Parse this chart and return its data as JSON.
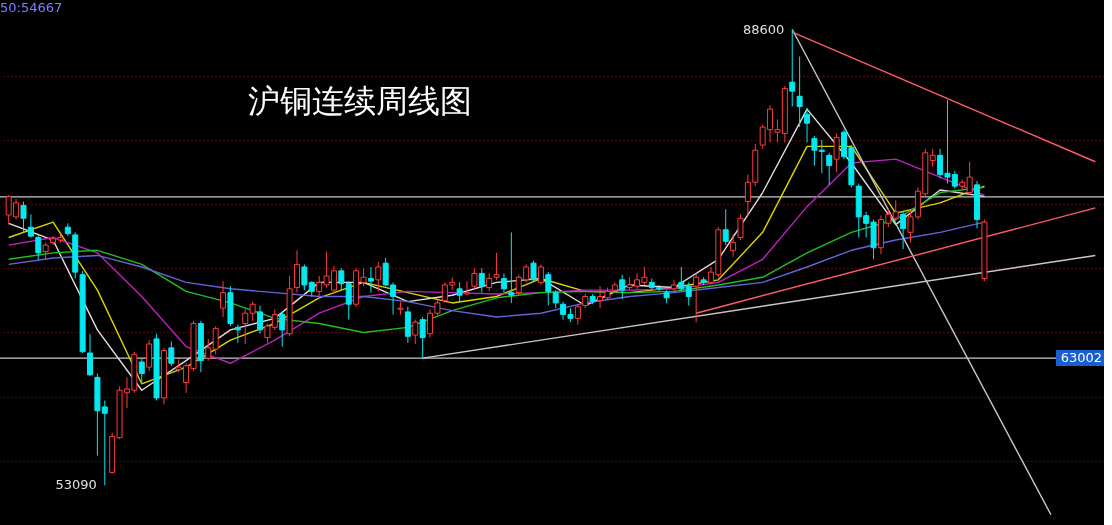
{
  "chart_data": {
    "type": "candlestick",
    "title": "沪铜连续周线图",
    "categories": [
      null,
      null,
      null,
      null,
      null,
      null,
      null,
      null,
      null,
      null,
      null,
      null,
      null,
      null,
      null,
      null,
      null,
      null,
      null,
      null,
      null,
      null,
      null,
      null,
      null,
      null,
      null,
      null,
      null,
      null,
      null,
      null,
      null,
      null,
      null,
      null,
      null,
      null,
      null,
      null,
      null,
      null,
      null,
      null,
      null,
      null,
      null,
      null,
      null,
      null,
      null,
      null,
      null,
      null,
      null,
      null,
      null,
      null,
      null,
      null,
      null,
      null,
      null,
      null,
      null,
      null,
      null,
      null,
      null,
      null,
      null,
      null,
      null,
      null,
      null,
      null,
      null,
      null,
      null,
      null,
      null,
      null,
      null,
      null,
      null,
      null,
      null,
      null,
      null,
      null,
      null,
      null,
      null,
      null,
      null,
      null,
      null,
      null,
      null,
      null,
      null,
      null,
      null,
      null,
      null,
      null,
      null,
      null,
      null,
      null,
      null,
      null,
      null,
      null,
      null,
      null,
      null,
      null,
      null,
      null,
      null,
      null,
      null,
      null,
      null,
      null,
      null,
      null,
      null,
      null,
      null,
      null,
      null,
      null,
      null,
      null,
      null,
      null,
      null,
      null,
      null,
      null,
      null,
      null,
      null,
      null,
      null,
      null
    ],
    "ohlc": [
      [
        74150,
        75700,
        73400,
        75570
      ],
      [
        74000,
        75400,
        73800,
        75100
      ],
      [
        74900,
        75200,
        72800,
        73900
      ],
      [
        73200,
        74200,
        72400,
        72500
      ],
      [
        72400,
        72600,
        70650,
        71200
      ],
      [
        71300,
        72000,
        70700,
        71800
      ],
      [
        72000,
        72500,
        71800,
        72300
      ],
      [
        72200,
        72700,
        72000,
        72400
      ],
      [
        73200,
        73500,
        72500,
        72700
      ],
      [
        72600,
        72800,
        69200,
        69700
      ],
      [
        69500,
        69800,
        63400,
        63500
      ],
      [
        63400,
        64900,
        61600,
        61700
      ],
      [
        61500,
        61800,
        55400,
        58900
      ],
      [
        59200,
        59700,
        53090,
        58700
      ],
      [
        54100,
        57200,
        54000,
        56900
      ],
      [
        56800,
        60800,
        56700,
        60500
      ],
      [
        60300,
        61500,
        59100,
        60600
      ],
      [
        60500,
        63500,
        60300,
        63300
      ],
      [
        62700,
        63000,
        61000,
        61800
      ],
      [
        62300,
        64400,
        62000,
        64100
      ],
      [
        64500,
        64900,
        59700,
        59900
      ],
      [
        59900,
        63800,
        59400,
        63600
      ],
      [
        63800,
        64300,
        62400,
        62600
      ],
      [
        62100,
        62900,
        61900,
        62300
      ],
      [
        61100,
        62600,
        60300,
        62400
      ],
      [
        62200,
        65900,
        62000,
        65700
      ],
      [
        65700,
        65900,
        61900,
        62800
      ],
      [
        63000,
        64500,
        62800,
        63800
      ],
      [
        63700,
        65500,
        63300,
        65300
      ],
      [
        66900,
        69000,
        66200,
        68100
      ],
      [
        68100,
        68600,
        65500,
        65700
      ],
      [
        65400,
        65600,
        64200,
        65200
      ],
      [
        65700,
        66800,
        64100,
        66500
      ],
      [
        66500,
        67400,
        65900,
        67200
      ],
      [
        66600,
        67100,
        64900,
        65200
      ],
      [
        64600,
        65700,
        64200,
        65500
      ],
      [
        65400,
        66800,
        65200,
        66400
      ],
      [
        66400,
        66600,
        63900,
        65200
      ],
      [
        64900,
        69400,
        64700,
        68400
      ],
      [
        68500,
        71400,
        68100,
        70300
      ],
      [
        70100,
        70300,
        68300,
        68700
      ],
      [
        68900,
        69000,
        67800,
        68200
      ],
      [
        68200,
        69400,
        67600,
        68900
      ],
      [
        68700,
        71300,
        68500,
        69400
      ],
      [
        68300,
        70200,
        68100,
        69800
      ],
      [
        69800,
        70000,
        68300,
        68800
      ],
      [
        68800,
        69000,
        66000,
        67200
      ],
      [
        67200,
        70000,
        67000,
        69800
      ],
      [
        68900,
        70000,
        68600,
        69300
      ],
      [
        69200,
        70100,
        68100,
        69000
      ],
      [
        69100,
        70500,
        68200,
        70100
      ],
      [
        70400,
        70800,
        68600,
        68700
      ],
      [
        68700,
        68900,
        66400,
        67800
      ],
      [
        66800,
        67400,
        66400,
        66900
      ],
      [
        66600,
        67000,
        64200,
        64700
      ],
      [
        64800,
        66000,
        64100,
        65800
      ],
      [
        66000,
        66200,
        63000,
        64600
      ],
      [
        64900,
        66800,
        64600,
        66500
      ],
      [
        66500,
        67500,
        66300,
        67300
      ],
      [
        67500,
        68900,
        67300,
        68700
      ],
      [
        68700,
        69300,
        68300,
        68900
      ],
      [
        68400,
        68900,
        67300,
        67900
      ],
      [
        68000,
        69000,
        67900,
        68100
      ],
      [
        68600,
        70000,
        68400,
        69600
      ],
      [
        69600,
        70000,
        68100,
        68600
      ],
      [
        68500,
        69600,
        68200,
        69200
      ],
      [
        69300,
        71200,
        69100,
        69500
      ],
      [
        69200,
        69600,
        68100,
        68400
      ],
      [
        68100,
        72800,
        67300,
        67900
      ],
      [
        68100,
        69500,
        67900,
        69300
      ],
      [
        69100,
        70300,
        68900,
        70100
      ],
      [
        70400,
        70600,
        69000,
        69100
      ],
      [
        68900,
        70300,
        68700,
        70100
      ],
      [
        69500,
        69700,
        67100,
        68200
      ],
      [
        68100,
        68300,
        66900,
        67300
      ],
      [
        67200,
        67400,
        66000,
        66400
      ],
      [
        66400,
        66900,
        65800,
        66100
      ],
      [
        66100,
        67200,
        65600,
        67000
      ],
      [
        67100,
        68000,
        66900,
        67800
      ],
      [
        67800,
        68000,
        67200,
        67400
      ],
      [
        67500,
        68600,
        66900,
        67800
      ],
      [
        67700,
        68500,
        67500,
        68200
      ],
      [
        68300,
        68900,
        68100,
        68700
      ],
      [
        69100,
        69500,
        67600,
        68300
      ],
      [
        68500,
        69300,
        68300,
        68700
      ],
      [
        68600,
        69600,
        68400,
        69100
      ],
      [
        68900,
        70100,
        68700,
        69300
      ],
      [
        68900,
        69200,
        68300,
        68500
      ],
      [
        68500,
        68700,
        68200,
        68400
      ],
      [
        68100,
        68300,
        67300,
        67700
      ],
      [
        68400,
        69100,
        68200,
        68700
      ],
      [
        68900,
        70100,
        68200,
        68400
      ],
      [
        68600,
        68900,
        67100,
        67800
      ],
      [
        68600,
        69600,
        65800,
        69300
      ],
      [
        69100,
        69300,
        68700,
        68900
      ],
      [
        68900,
        70100,
        68800,
        69700
      ],
      [
        69500,
        73200,
        69300,
        73000
      ],
      [
        73000,
        74600,
        71800,
        72100
      ],
      [
        71400,
        72700,
        70900,
        72000
      ],
      [
        72400,
        74200,
        72200,
        73900
      ],
      [
        75200,
        77300,
        74100,
        76700
      ],
      [
        76700,
        79700,
        76400,
        79200
      ],
      [
        79600,
        81200,
        79300,
        81000
      ],
      [
        80800,
        82700,
        79800,
        82400
      ],
      [
        80600,
        81600,
        79800,
        80800
      ],
      [
        80500,
        84200,
        79800,
        84000
      ],
      [
        84500,
        88600,
        82600,
        83800
      ],
      [
        83400,
        86500,
        81000,
        82600
      ],
      [
        82000,
        82500,
        79800,
        81300
      ],
      [
        80100,
        80300,
        78000,
        79200
      ],
      [
        79200,
        80000,
        77400,
        79100
      ],
      [
        78800,
        79000,
        76500,
        78000
      ],
      [
        78500,
        80500,
        77500,
        80200
      ],
      [
        80600,
        80800,
        78500,
        78700
      ],
      [
        79400,
        79600,
        76300,
        76500
      ],
      [
        76400,
        76600,
        72400,
        74000
      ],
      [
        74100,
        74400,
        72400,
        73500
      ],
      [
        73600,
        73800,
        70700,
        71600
      ],
      [
        71600,
        74100,
        71100,
        73800
      ],
      [
        73500,
        74600,
        73200,
        74200
      ],
      [
        73900,
        75300,
        73700,
        74400
      ],
      [
        74200,
        74400,
        71500,
        73100
      ],
      [
        72800,
        74500,
        72000,
        74000
      ],
      [
        74000,
        76300,
        73800,
        76000
      ],
      [
        75800,
        79300,
        75600,
        79000
      ],
      [
        78400,
        79300,
        77900,
        78800
      ],
      [
        78800,
        79300,
        77000,
        77300
      ],
      [
        77400,
        83100,
        76600,
        77100
      ],
      [
        77300,
        77600,
        76200,
        76400
      ],
      [
        76400,
        76900,
        76100,
        76700
      ],
      [
        75900,
        78300,
        75700,
        77100
      ],
      [
        76500,
        76800,
        73100,
        73800
      ],
      [
        69200,
        73800,
        69000,
        73600
      ],
      null,
      null,
      null,
      null,
      null,
      null,
      null,
      null,
      null,
      null,
      null,
      null,
      null,
      null,
      null
    ],
    "colors": [
      "#ff3b3b",
      "#ff3b3b",
      "#00e8f0",
      "#00e8f0",
      "#00e8f0",
      "#ff3b3b",
      "#ff3b3b",
      "#ff3b3b",
      "#00e8f0",
      "#00e8f0",
      "#00e8f0",
      "#00e8f0",
      "#00e8f0",
      "#00e8f0",
      "#ff3b3b",
      "#ff3b3b",
      "#ff3b3b",
      "#ff3b3b",
      "#00e8f0",
      "#ff3b3b",
      "#00e8f0",
      "#ff3b3b",
      "#00e8f0",
      "#ff3b3b",
      "#ff3b3b",
      "#ff3b3b",
      "#00e8f0",
      "#ff3b3b",
      "#ff3b3b",
      "#ff3b3b",
      "#00e8f0",
      "#00e8f0",
      "#ff3b3b",
      "#ff3b3b",
      "#00e8f0",
      "#ff3b3b",
      "#ff3b3b",
      "#00e8f0",
      "#ff3b3b",
      "#ff3b3b",
      "#00e8f0",
      "#00e8f0",
      "#ff3b3b",
      "#ff3b3b",
      "#ff3b3b",
      "#00e8f0",
      "#00e8f0",
      "#ff3b3b",
      "#ff3b3b",
      "#00e8f0",
      "#ff3b3b",
      "#00e8f0",
      "#00e8f0",
      "#ff3b3b",
      "#00e8f0",
      "#ff3b3b",
      "#00e8f0",
      "#ff3b3b",
      "#ff3b3b",
      "#ff3b3b",
      "#ff3b3b",
      "#00e8f0",
      "#ff3b3b",
      "#ff3b3b",
      "#00e8f0",
      "#ff3b3b",
      "#ff3b3b",
      "#00e8f0",
      "#00e8f0",
      "#ff3b3b",
      "#ff3b3b",
      "#00e8f0",
      "#ff3b3b",
      "#00e8f0",
      "#00e8f0",
      "#00e8f0",
      "#00e8f0",
      "#ff3b3b",
      "#ff3b3b",
      "#00e8f0",
      "#ff3b3b",
      "#ff3b3b",
      "#ff3b3b",
      "#00e8f0",
      "#ff3b3b",
      "#ff3b3b",
      "#ff3b3b",
      "#00e8f0",
      "#00e8f0",
      "#00e8f0",
      "#ff3b3b",
      "#00e8f0",
      "#00e8f0",
      "#ff3b3b",
      "#00e8f0",
      "#ff3b3b",
      "#ff3b3b",
      "#00e8f0",
      "#ff3b3b",
      "#ff3b3b",
      "#ff3b3b",
      "#ff3b3b",
      "#ff3b3b",
      "#ff3b3b",
      "#ff3b3b",
      "#ff3b3b",
      "#00e8f0",
      "#00e8f0",
      "#00e8f0",
      "#00e8f0",
      "#00e8f0",
      "#00e8f0",
      "#ff3b3b",
      "#00e8f0",
      "#00e8f0",
      "#00e8f0",
      "#00e8f0",
      "#00e8f0",
      "#ff3b3b",
      "#ff3b3b",
      "#ff3b3b",
      "#00e8f0",
      "#ff3b3b",
      "#ff3b3b",
      "#ff3b3b",
      "#ff3b3b",
      "#00e8f0",
      "#00e8f0",
      "#00e8f0",
      "#ff3b3b",
      "#ff3b3b",
      "#00e8f0",
      "#ff3b3b",
      null,
      null,
      null,
      null,
      null,
      null,
      null,
      null,
      null,
      null,
      null,
      null,
      null,
      null,
      null
    ],
    "series": [
      {
        "type": "line",
        "color": "#e0e0e0",
        "values": [
          73500,
          null,
          null,
          null,
          null,
          null,
          72200,
          null,
          null,
          null,
          null,
          null,
          65200,
          null,
          null,
          null,
          null,
          null,
          60500,
          null,
          null,
          null,
          null,
          null,
          62800,
          null,
          null,
          null,
          null,
          null,
          65200,
          null,
          null,
          null,
          null,
          null,
          66100,
          null,
          null,
          null,
          null,
          null,
          68900,
          null,
          null,
          null,
          null,
          null,
          68900,
          null,
          null,
          null,
          null,
          null,
          67400,
          null,
          null,
          null,
          null,
          null,
          67900,
          null,
          null,
          null,
          null,
          null,
          68900,
          null,
          null,
          null,
          null,
          null,
          69200,
          null,
          null,
          null,
          null,
          null,
          67100,
          null,
          null,
          null,
          null,
          null,
          68700,
          null,
          null,
          null,
          null,
          null,
          68500,
          null,
          null,
          null,
          null,
          null,
          70700,
          null,
          null,
          null,
          null,
          null,
          75900,
          null,
          null,
          null,
          null,
          null,
          82400,
          null,
          null,
          null,
          null,
          null,
          78200,
          null,
          null,
          null,
          null,
          null,
          73400,
          null,
          null,
          null,
          null,
          null,
          76100,
          null,
          null,
          null,
          null,
          null,
          75600,
          null,
          null,
          null,
          null,
          null,
          null,
          null,
          null,
          null,
          null,
          null,
          null,
          null,
          null,
          null
        ]
      },
      {
        "type": "line",
        "color": "#d8d800",
        "values": [
          72400,
          null,
          null,
          null,
          null,
          null,
          73600,
          null,
          null,
          null,
          null,
          null,
          68300,
          null,
          null,
          null,
          null,
          null,
          61000,
          null,
          null,
          null,
          null,
          null,
          62300,
          null,
          null,
          null,
          null,
          null,
          64400,
          null,
          null,
          null,
          null,
          null,
          65700,
          null,
          null,
          null,
          null,
          null,
          67700,
          null,
          null,
          null,
          null,
          null,
          68900,
          null,
          null,
          null,
          null,
          null,
          68100,
          null,
          null,
          null,
          null,
          null,
          67300,
          null,
          null,
          null,
          null,
          null,
          67800,
          null,
          null,
          null,
          null,
          null,
          69200,
          null,
          null,
          null,
          null,
          null,
          68200,
          null,
          null,
          null,
          null,
          null,
          68100,
          null,
          null,
          null,
          null,
          null,
          68500,
          null,
          null,
          null,
          null,
          null,
          69100,
          null,
          null,
          null,
          null,
          null,
          72800,
          null,
          null,
          null,
          null,
          null,
          79500,
          null,
          null,
          null,
          null,
          null,
          79500,
          null,
          null,
          null,
          null,
          null,
          74300,
          null,
          null,
          null,
          null,
          null,
          75100,
          null,
          null,
          null,
          null,
          null,
          76400,
          null,
          null,
          null,
          null,
          null,
          null,
          null,
          null,
          null,
          null,
          null,
          null,
          null,
          null,
          null
        ]
      },
      {
        "type": "line",
        "color": "#c020c0",
        "values": [
          71800,
          null,
          null,
          null,
          null,
          null,
          72400,
          null,
          null,
          null,
          null,
          null,
          71200,
          null,
          null,
          null,
          null,
          null,
          67800,
          null,
          null,
          null,
          null,
          null,
          63900,
          null,
          null,
          null,
          null,
          null,
          62600,
          null,
          null,
          null,
          null,
          null,
          64400,
          null,
          null,
          null,
          null,
          null,
          66500,
          null,
          null,
          null,
          null,
          null,
          67800,
          null,
          null,
          null,
          null,
          null,
          68200,
          null,
          null,
          null,
          null,
          null,
          68100,
          null,
          null,
          null,
          null,
          null,
          68000,
          null,
          null,
          null,
          null,
          null,
          68100,
          null,
          null,
          null,
          null,
          null,
          68300,
          null,
          null,
          null,
          null,
          null,
          68300,
          null,
          null,
          null,
          null,
          null,
          68400,
          null,
          null,
          null,
          null,
          null,
          68900,
          null,
          null,
          null,
          null,
          null,
          70700,
          null,
          null,
          null,
          null,
          null,
          74800,
          null,
          null,
          null,
          null,
          null,
          78200,
          null,
          null,
          null,
          null,
          null,
          78500,
          null,
          null,
          null,
          null,
          null,
          77100,
          null,
          null,
          null,
          null,
          null,
          75700,
          null,
          null,
          null,
          null,
          null,
          null,
          null,
          null,
          null,
          null,
          null,
          null,
          null,
          null,
          null
        ]
      },
      {
        "type": "line",
        "color": "#20c020",
        "values": [
          70700,
          null,
          null,
          null,
          null,
          null,
          71200,
          null,
          null,
          null,
          null,
          null,
          71400,
          null,
          null,
          null,
          null,
          null,
          70300,
          null,
          null,
          null,
          null,
          null,
          68200,
          null,
          null,
          null,
          null,
          null,
          67300,
          null,
          null,
          null,
          null,
          null,
          66100,
          null,
          null,
          null,
          null,
          null,
          65700,
          null,
          null,
          null,
          null,
          null,
          65000,
          null,
          null,
          null,
          null,
          null,
          65400,
          null,
          null,
          null,
          null,
          null,
          66700,
          null,
          null,
          null,
          null,
          null,
          67700,
          null,
          null,
          null,
          null,
          null,
          68100,
          null,
          null,
          null,
          null,
          null,
          68200,
          null,
          null,
          null,
          null,
          null,
          68100,
          null,
          null,
          null,
          null,
          null,
          68200,
          null,
          null,
          null,
          null,
          null,
          68700,
          null,
          null,
          null,
          null,
          null,
          69300,
          null,
          null,
          null,
          null,
          null,
          71200,
          null,
          null,
          null,
          null,
          null,
          72800,
          null,
          null,
          null,
          null,
          null,
          73800,
          null,
          null,
          null,
          null,
          null,
          75900,
          null,
          null,
          null,
          null,
          null,
          76300,
          null,
          null,
          null,
          null,
          null,
          null,
          null,
          null,
          null,
          null,
          null,
          null,
          null,
          null,
          null
        ]
      },
      {
        "type": "line",
        "color": "#6464d8",
        "values": [
          70300,
          null,
          null,
          null,
          null,
          null,
          70800,
          null,
          null,
          null,
          null,
          null,
          71000,
          null,
          null,
          null,
          null,
          null,
          70100,
          null,
          null,
          null,
          null,
          null,
          68900,
          null,
          null,
          null,
          null,
          null,
          68400,
          null,
          null,
          null,
          null,
          null,
          68100,
          null,
          null,
          null,
          null,
          null,
          67800,
          null,
          null,
          null,
          null,
          null,
          67800,
          null,
          null,
          null,
          null,
          null,
          67400,
          null,
          null,
          null,
          null,
          null,
          66700,
          null,
          null,
          null,
          null,
          null,
          66200,
          null,
          null,
          null,
          null,
          null,
          66500,
          null,
          null,
          null,
          null,
          null,
          67300,
          null,
          null,
          null,
          null,
          null,
          67800,
          null,
          null,
          null,
          null,
          null,
          68100,
          null,
          null,
          null,
          null,
          null,
          68500,
          null,
          null,
          null,
          null,
          null,
          68900,
          null,
          null,
          null,
          null,
          null,
          70100,
          null,
          null,
          null,
          null,
          null,
          71400,
          null,
          null,
          null,
          null,
          null,
          72200,
          null,
          null,
          null,
          null,
          null,
          72800,
          null,
          null,
          null,
          null,
          null,
          73600,
          null,
          null,
          null,
          null,
          null,
          null,
          null,
          null,
          null,
          null,
          null,
          null,
          null,
          null,
          null
        ]
      },
      {
        "type": "line",
        "color": "#c8c8c8",
        "values": [
          null,
          null,
          null,
          null,
          null,
          null,
          null,
          null,
          null,
          null,
          null,
          null,
          null,
          null,
          null,
          null,
          null,
          null,
          null,
          null,
          null,
          null,
          null,
          null,
          null,
          null,
          null,
          null,
          null,
          null,
          null,
          null,
          null,
          null,
          null,
          null,
          null,
          null,
          null,
          null,
          null,
          null,
          null,
          null,
          null,
          null,
          null,
          null,
          null,
          null,
          null,
          null,
          null,
          null,
          null,
          null,
          63000,
          null,
          null,
          null,
          null,
          null,
          null,
          null,
          null,
          null,
          null,
          null,
          null,
          null,
          null,
          null,
          null,
          null,
          null,
          null,
          null,
          null,
          null,
          null,
          null,
          null,
          null,
          null,
          null,
          null,
          null,
          null,
          null,
          null,
          null,
          null,
          null,
          null,
          null,
          null,
          null,
          null,
          null,
          null,
          null,
          null,
          null,
          null,
          null,
          null,
          null,
          null,
          null,
          null,
          null,
          null,
          null,
          null,
          null,
          null,
          null,
          null,
          null,
          null,
          null,
          null,
          null,
          null,
          null,
          null,
          null,
          null,
          null,
          null,
          null,
          null,
          null,
          null,
          null,
          null,
          null,
          null,
          null,
          null,
          null,
          null,
          null,
          null,
          null,
          null,
          null,
          71000
        ]
      },
      {
        "type": "line",
        "color": "#c8c8c8",
        "values": [
          null,
          null,
          null,
          null,
          null,
          null,
          null,
          null,
          null,
          null,
          null,
          null,
          null,
          null,
          null,
          null,
          null,
          null,
          null,
          null,
          null,
          null,
          null,
          null,
          null,
          null,
          null,
          null,
          null,
          null,
          null,
          null,
          null,
          null,
          null,
          null,
          null,
          null,
          null,
          null,
          null,
          null,
          null,
          null,
          null,
          null,
          null,
          null,
          null,
          null,
          null,
          null,
          null,
          null,
          null,
          null,
          null,
          null,
          null,
          null,
          null,
          null,
          null,
          null,
          null,
          null,
          null,
          null,
          null,
          null,
          null,
          null,
          null,
          null,
          null,
          null,
          null,
          null,
          null,
          null,
          null,
          null,
          null,
          null,
          null,
          null,
          null,
          null,
          null,
          null,
          null,
          null,
          null,
          null,
          null,
          null,
          null,
          null,
          null,
          null,
          null,
          null,
          null,
          null,
          null,
          null,
          88600,
          null,
          null,
          null,
          null,
          null,
          null,
          null,
          null,
          null,
          null,
          null,
          null,
          null,
          null,
          null,
          null,
          null,
          null,
          null,
          null,
          null,
          null,
          null,
          null,
          null,
          null,
          null,
          null,
          null,
          null,
          null,
          null,
          null,
          null,
          50800,
          null,
          null,
          null,
          null,
          null,
          null
        ]
      },
      {
        "type": "line",
        "color": "#ff5c6c",
        "values": [
          null,
          null,
          null,
          null,
          null,
          null,
          null,
          null,
          null,
          null,
          null,
          null,
          null,
          null,
          null,
          null,
          null,
          null,
          null,
          null,
          null,
          null,
          null,
          null,
          null,
          null,
          null,
          null,
          null,
          null,
          null,
          null,
          null,
          null,
          null,
          null,
          null,
          null,
          null,
          null,
          null,
          null,
          null,
          null,
          null,
          null,
          null,
          null,
          null,
          null,
          null,
          null,
          null,
          null,
          null,
          null,
          null,
          null,
          null,
          null,
          null,
          null,
          null,
          null,
          null,
          null,
          null,
          null,
          null,
          null,
          null,
          null,
          null,
          null,
          null,
          null,
          null,
          null,
          null,
          null,
          null,
          null,
          null,
          null,
          null,
          null,
          null,
          null,
          null,
          null,
          null,
          null,
          null,
          null,
          null,
          null,
          null,
          null,
          null,
          null,
          null,
          null,
          null,
          null,
          null,
          null,
          88400,
          null,
          null,
          null,
          null,
          null,
          null,
          null,
          null,
          null,
          null,
          null,
          null,
          null,
          null,
          null,
          null,
          null,
          null,
          null,
          null,
          null,
          null,
          null,
          null,
          null,
          null,
          null,
          null,
          null,
          null,
          null,
          null,
          null,
          null,
          null,
          null,
          null,
          null,
          null,
          null,
          78300
        ]
      },
      {
        "type": "line",
        "color": "#ff5c6c",
        "values": [
          null,
          null,
          null,
          null,
          null,
          null,
          null,
          null,
          null,
          null,
          null,
          null,
          null,
          null,
          null,
          null,
          null,
          null,
          null,
          null,
          null,
          null,
          null,
          null,
          null,
          null,
          null,
          null,
          null,
          null,
          null,
          null,
          null,
          null,
          null,
          null,
          null,
          null,
          null,
          null,
          null,
          null,
          null,
          null,
          null,
          null,
          null,
          null,
          null,
          null,
          null,
          null,
          null,
          null,
          null,
          null,
          null,
          null,
          null,
          null,
          null,
          null,
          null,
          null,
          null,
          null,
          null,
          null,
          null,
          null,
          null,
          null,
          null,
          null,
          null,
          null,
          null,
          null,
          null,
          null,
          null,
          null,
          null,
          null,
          null,
          null,
          null,
          null,
          null,
          null,
          null,
          null,
          null,
          66500,
          null,
          null,
          null,
          null,
          null,
          null,
          null,
          null,
          null,
          null,
          null,
          null,
          null,
          null,
          null,
          null,
          null,
          null,
          null,
          null,
          null,
          null,
          null,
          null,
          null,
          null,
          null,
          null,
          null,
          null,
          null,
          null,
          null,
          null,
          null,
          null,
          null,
          null,
          null,
          null,
          null,
          null,
          null,
          null,
          null,
          null,
          null,
          null,
          null,
          null,
          null,
          null,
          null,
          74700
        ]
      }
    ],
    "ylim": [
      50000,
      90900
    ],
    "yticks": [
      {
        "value": 55000,
        "label": null
      },
      {
        "value": 60000,
        "label": null
      },
      {
        "value": 65000,
        "label": null
      },
      {
        "value": 70000,
        "label": null
      },
      {
        "value": 75000,
        "label": null
      },
      {
        "value": 80000,
        "label": null
      },
      {
        "value": 85000,
        "label": null
      }
    ],
    "tick_labels": false,
    "grid": "y",
    "ref_lines": [
      {
        "axis": "y",
        "value": 75570,
        "color": "#c8c8c8"
      },
      {
        "axis": "y",
        "value": 63002,
        "label": "63002",
        "color": "#c8c8c8"
      }
    ],
    "annotations": [
      "88600",
      "53090",
      "50:54667"
    ]
  }
}
